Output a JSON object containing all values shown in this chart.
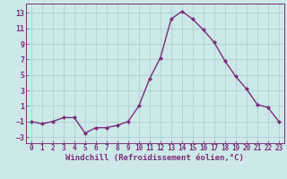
{
  "x": [
    0,
    1,
    2,
    3,
    4,
    5,
    6,
    7,
    8,
    9,
    10,
    11,
    12,
    13,
    14,
    15,
    16,
    17,
    18,
    19,
    20,
    21,
    22,
    23
  ],
  "y": [
    -1,
    -1.3,
    -1,
    -0.5,
    -0.5,
    -2.5,
    -1.8,
    -1.8,
    -1.5,
    -1,
    1,
    4.5,
    7.2,
    12.2,
    13.2,
    12.2,
    10.8,
    9.2,
    6.8,
    4.8,
    3.2,
    1.2,
    0.8,
    -1.0
  ],
  "line_color": "#7b2d7b",
  "marker": "D",
  "markersize": 2.0,
  "linewidth": 1.0,
  "background_color": "#cce8e8",
  "grid_color": "#aacccc",
  "xlabel": "Windchill (Refroidissement éolien,°C)",
  "xlabel_fontsize": 6.5,
  "xlabel_color": "#7b2d7b",
  "tick_color": "#7b2d7b",
  "tick_fontsize": 5.5,
  "ylim": [
    -3.8,
    14.2
  ],
  "xlim": [
    -0.5,
    23.5
  ],
  "yticks": [
    -3,
    -1,
    1,
    3,
    5,
    7,
    9,
    11,
    13
  ],
  "xticks": [
    0,
    1,
    2,
    3,
    4,
    5,
    6,
    7,
    8,
    9,
    10,
    11,
    12,
    13,
    14,
    15,
    16,
    17,
    18,
    19,
    20,
    21,
    22,
    23
  ]
}
